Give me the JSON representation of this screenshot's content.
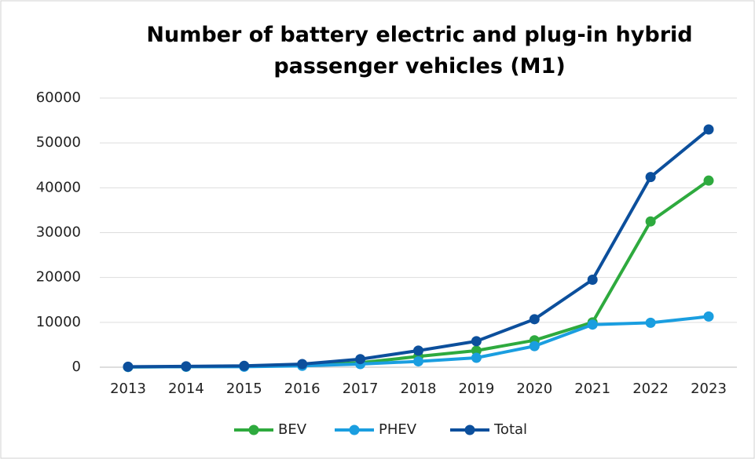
{
  "chart_data": {
    "type": "line",
    "title": "Number of battery electric and plug-in hybrid passenger vehicles (M1)",
    "categories": [
      "2013",
      "2014",
      "2015",
      "2016",
      "2017",
      "2018",
      "2019",
      "2020",
      "2021",
      "2022",
      "2023"
    ],
    "series": [
      {
        "name": "BEV",
        "color": "#2eaa3e",
        "values": [
          50,
          100,
          200,
          400,
          1000,
          2400,
          3700,
          6000,
          10000,
          32500,
          41600
        ]
      },
      {
        "name": "PHEV",
        "color": "#1a9ee0",
        "values": [
          50,
          100,
          100,
          300,
          700,
          1300,
          2100,
          4700,
          9500,
          9900,
          11300
        ]
      },
      {
        "name": "Total",
        "color": "#0c4f9c",
        "values": [
          100,
          200,
          300,
          700,
          1800,
          3700,
          5800,
          10700,
          19500,
          42400,
          53000
        ]
      }
    ],
    "ylim": [
      0,
      60000
    ],
    "yticks": [
      0,
      10000,
      20000,
      30000,
      40000,
      50000,
      60000
    ],
    "grid": true,
    "legend": "bottom"
  }
}
